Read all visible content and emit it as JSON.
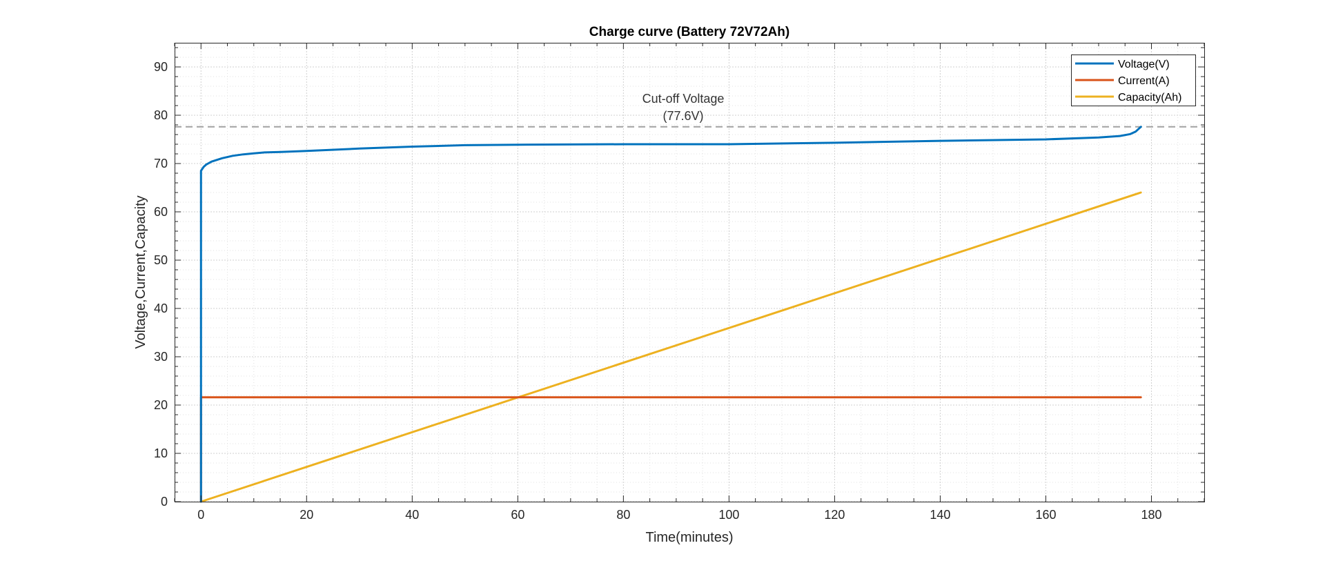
{
  "chart_data": {
    "type": "line",
    "title": "Charge curve (Battery 72V72Ah)",
    "xlabel": "Time(minutes)",
    "ylabel": "Voltage,Current,Capacity",
    "xlim": [
      -5,
      190
    ],
    "ylim": [
      0,
      95
    ],
    "xticks": [
      0,
      20,
      40,
      60,
      80,
      100,
      120,
      140,
      160,
      180
    ],
    "yticks": [
      0,
      10,
      20,
      30,
      40,
      50,
      60,
      70,
      80,
      90
    ],
    "grid": true,
    "minor_grid": true,
    "legend_position": "top-right",
    "series": [
      {
        "name": "Voltage(V)",
        "color": "#0072BD",
        "x": [
          0,
          0,
          0.5,
          1,
          2,
          4,
          6,
          8,
          10,
          12,
          15,
          20,
          30,
          40,
          50,
          60,
          80,
          100,
          120,
          140,
          160,
          170,
          174,
          176,
          177,
          178
        ],
        "y": [
          0,
          68.5,
          69.3,
          69.8,
          70.4,
          71.1,
          71.6,
          71.9,
          72.1,
          72.3,
          72.4,
          72.6,
          73.1,
          73.5,
          73.8,
          73.9,
          74.0,
          74.0,
          74.3,
          74.7,
          75.0,
          75.4,
          75.7,
          76.1,
          76.6,
          77.6
        ]
      },
      {
        "name": "Current(A)",
        "color": "#D95319",
        "x": [
          0,
          0,
          178
        ],
        "y": [
          0,
          21.6,
          21.6
        ]
      },
      {
        "name": "Capacity(Ah)",
        "color": "#EDB120",
        "x": [
          0,
          178
        ],
        "y": [
          0,
          64
        ]
      }
    ],
    "reference_line": {
      "y": 77.6,
      "color": "#A0A0A0",
      "label_line1": "Cut-off Voltage",
      "label_line2": "(77.6V)"
    }
  }
}
